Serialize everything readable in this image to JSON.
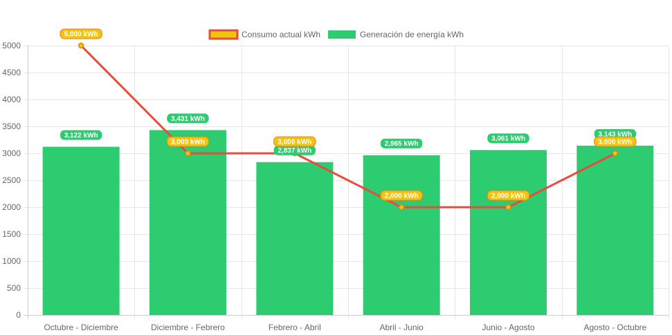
{
  "chart_data": {
    "type": "bar",
    "categories": [
      "Octubre - Diciembre",
      "Diciembre - Febrero",
      "Febrero - Abril",
      "Abril - Junio",
      "Junio - Agosto",
      "Agosto - Octubre"
    ],
    "series": [
      {
        "name": "Consumo actual kWh",
        "type": "line",
        "values": [
          5000,
          3000,
          3000,
          2000,
          2000,
          3000
        ],
        "labels": [
          "5,000 kWh",
          "3,000 kWh",
          "3,000 kWh",
          "2,000 kWh",
          "2,000 kWh",
          "3,000 kWh"
        ],
        "color": "#e74c3c",
        "label_color": "#f1c40f",
        "label_border": "#e67e22"
      },
      {
        "name": "Generación de energía kWh",
        "type": "bar",
        "values": [
          3122,
          3431,
          2837,
          2965,
          3061,
          3143
        ],
        "labels": [
          "3,122 kWh",
          "3,431 kWh",
          "2,837 kWh",
          "2,965 kWh",
          "3,061 kWh",
          "3,143 kWh"
        ],
        "color": "#2ecc71"
      }
    ],
    "yticks": [
      "0",
      "500",
      "1000",
      "1500",
      "2000",
      "2500",
      "3000",
      "3500",
      "4000",
      "4500",
      "5000"
    ],
    "ylim": [
      0,
      5000
    ],
    "grid": true,
    "legend": "top-center"
  }
}
